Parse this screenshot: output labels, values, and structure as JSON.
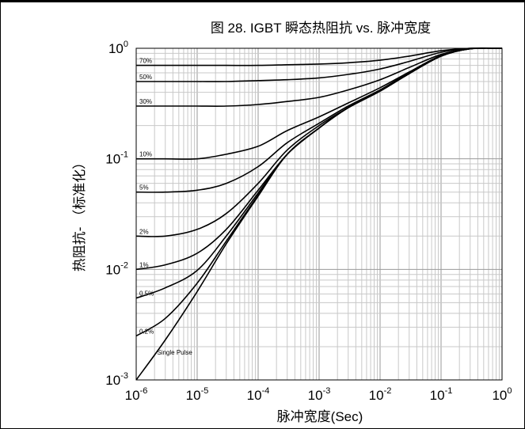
{
  "chart_data": {
    "type": "line",
    "title": "图 28. IGBT 瞬态热阻抗 vs. 脉冲宽度",
    "xlabel": "脉冲宽度(Sec)",
    "ylabel": "热阻抗- （标准化）",
    "x_scale": "log",
    "y_scale": "log",
    "xlim": [
      1e-06,
      1
    ],
    "ylim": [
      0.001,
      1
    ],
    "grid": true,
    "x_ticks": [
      {
        "base": "10",
        "exp": "-6"
      },
      {
        "base": "10",
        "exp": "-5"
      },
      {
        "base": "10",
        "exp": "-4"
      },
      {
        "base": "10",
        "exp": "-3"
      },
      {
        "base": "10",
        "exp": "-2"
      },
      {
        "base": "10",
        "exp": "-1"
      },
      {
        "base": "10",
        "exp": "0"
      }
    ],
    "y_ticks": [
      {
        "base": "10",
        "exp": "0"
      },
      {
        "base": "10",
        "exp": "-1"
      },
      {
        "base": "10",
        "exp": "-2"
      },
      {
        "base": "10",
        "exp": "-3"
      }
    ],
    "x": [
      1e-06,
      3e-06,
      1e-05,
      3e-05,
      0.0001,
      0.0003,
      0.001,
      0.003,
      0.01,
      0.03,
      0.1,
      0.3,
      1
    ],
    "series": [
      {
        "name": "70%",
        "values": [
          0.7,
          0.7,
          0.7,
          0.7,
          0.7,
          0.71,
          0.72,
          0.74,
          0.78,
          0.85,
          0.95,
          1.0,
          1.0
        ]
      },
      {
        "name": "50%",
        "values": [
          0.5,
          0.5,
          0.5,
          0.5,
          0.51,
          0.52,
          0.54,
          0.58,
          0.65,
          0.76,
          0.92,
          1.0,
          1.0
        ]
      },
      {
        "name": "30%",
        "values": [
          0.3,
          0.3,
          0.3,
          0.3,
          0.31,
          0.33,
          0.36,
          0.42,
          0.52,
          0.67,
          0.88,
          0.99,
          1.0
        ]
      },
      {
        "name": "10%",
        "values": [
          0.1,
          0.1,
          0.1,
          0.11,
          0.13,
          0.18,
          0.24,
          0.32,
          0.44,
          0.61,
          0.86,
          0.99,
          1.0
        ]
      },
      {
        "name": "5%",
        "values": [
          0.05,
          0.05,
          0.052,
          0.06,
          0.085,
          0.14,
          0.21,
          0.3,
          0.42,
          0.6,
          0.85,
          0.99,
          1.0
        ]
      },
      {
        "name": "2%",
        "values": [
          0.02,
          0.02,
          0.023,
          0.032,
          0.06,
          0.12,
          0.2,
          0.29,
          0.41,
          0.59,
          0.85,
          0.99,
          1.0
        ]
      },
      {
        "name": "1%",
        "values": [
          0.01,
          0.011,
          0.014,
          0.023,
          0.052,
          0.11,
          0.19,
          0.29,
          0.41,
          0.59,
          0.85,
          0.99,
          1.0
        ]
      },
      {
        "name": "0.5%",
        "values": [
          0.0055,
          0.0068,
          0.0098,
          0.02,
          0.049,
          0.11,
          0.19,
          0.29,
          0.41,
          0.59,
          0.85,
          0.99,
          1.0
        ]
      },
      {
        "name": "0.2%",
        "values": [
          0.0025,
          0.0036,
          0.0075,
          0.018,
          0.047,
          0.11,
          0.19,
          0.29,
          0.41,
          0.59,
          0.85,
          0.99,
          1.0
        ]
      },
      {
        "name": "Single Pulse",
        "values": [
          0.001,
          0.0023,
          0.0063,
          0.017,
          0.046,
          0.11,
          0.19,
          0.29,
          0.41,
          0.59,
          0.85,
          0.99,
          1.0
        ]
      }
    ],
    "curve_label_text": [
      "70%",
      "50%",
      "30%",
      "10%",
      "5%",
      "2%",
      "1%",
      "0.5%",
      "0.2%",
      "Single Pulse"
    ]
  }
}
